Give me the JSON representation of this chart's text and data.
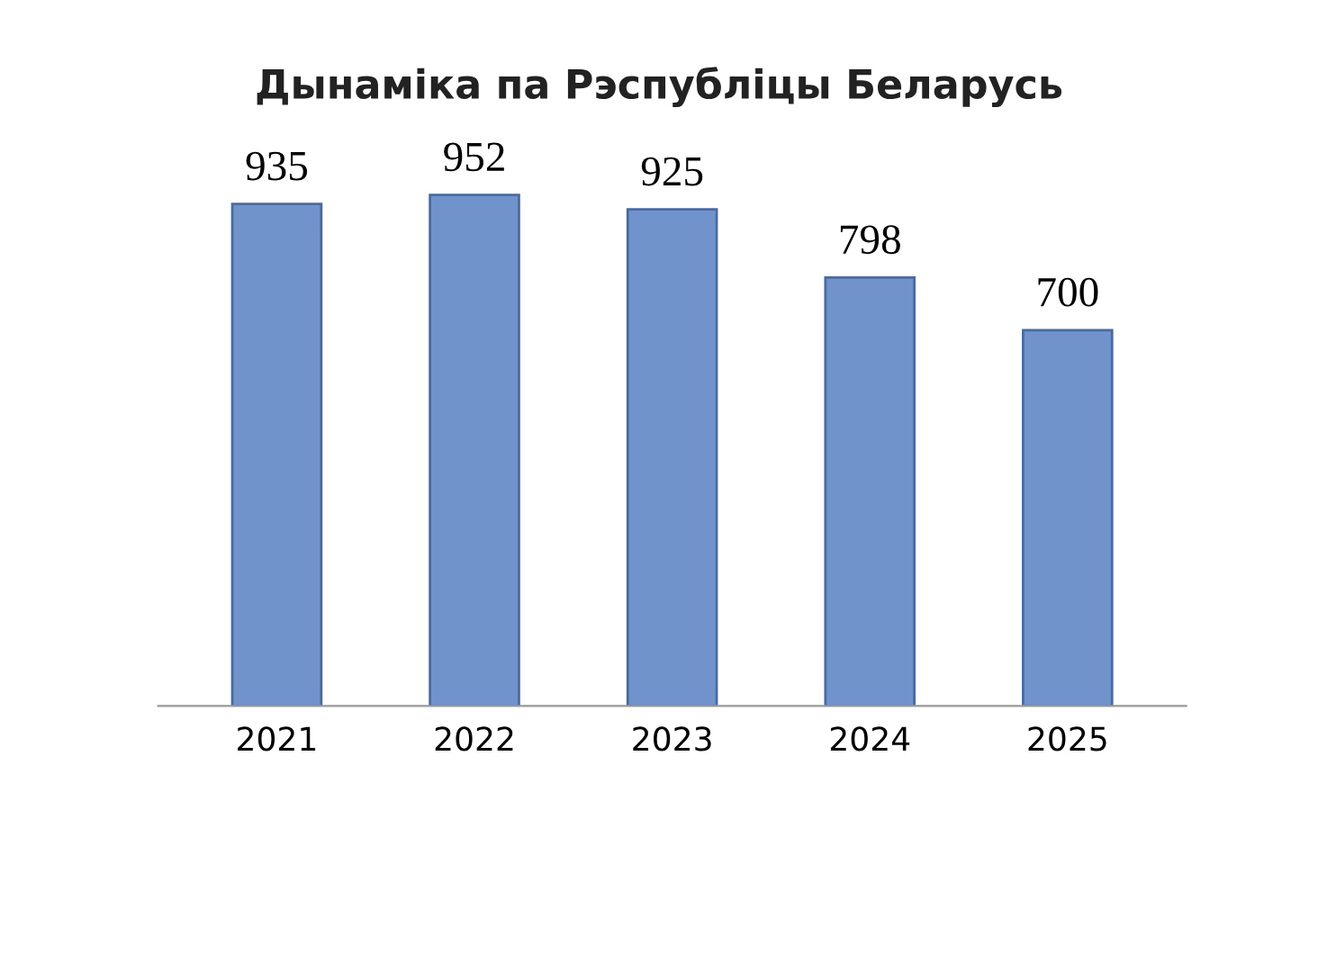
{
  "chart_data": {
    "type": "bar",
    "title": "Дынаміка па Рэспубліцы Беларусь",
    "categories": [
      "2021",
      "2022",
      "2023",
      "2024",
      "2025"
    ],
    "values": [
      935,
      952,
      925,
      798,
      700
    ],
    "color": "#7193cc",
    "data_labels": true,
    "grid": false,
    "legend": false
  }
}
